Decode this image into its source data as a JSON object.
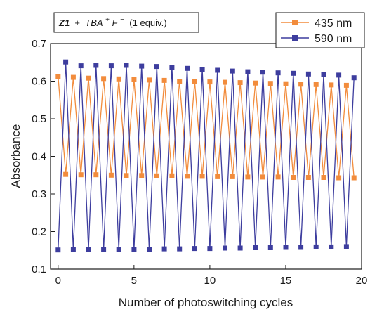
{
  "chart_data": {
    "type": "line",
    "title": "",
    "xlabel": "Number of photoswitching cycles",
    "ylabel": "Absorbance",
    "xlim": [
      -0.5,
      20
    ],
    "ylim": [
      0.1,
      0.7
    ],
    "xticks": [
      0,
      5,
      10,
      15,
      20
    ],
    "yticks": [
      0.1,
      0.2,
      0.3,
      0.4,
      0.5,
      0.6,
      0.7
    ],
    "grid": false,
    "legend_position": "top-right",
    "annotation": {
      "bold": "Z1",
      "text1": " + ",
      "italic1": "TBA",
      "sup1": "+",
      "italic2": "F",
      "sup2": "−",
      "text2": " (1 equiv.)"
    },
    "series": [
      {
        "name": "435 nm",
        "color": "#f28c3c",
        "marker": "square",
        "x": [
          0,
          0.5,
          1,
          1.5,
          2,
          2.5,
          3,
          3.5,
          4,
          4.5,
          5,
          5.5,
          6,
          6.5,
          7,
          7.5,
          8,
          8.5,
          9,
          9.5,
          10,
          10.5,
          11,
          11.5,
          12,
          12.5,
          13,
          13.5,
          14,
          14.5,
          15,
          15.5,
          16,
          16.5,
          17,
          17.5,
          18,
          18.5,
          19,
          19.5
        ],
        "values": [
          0.613,
          0.352,
          0.61,
          0.351,
          0.608,
          0.351,
          0.607,
          0.35,
          0.606,
          0.349,
          0.604,
          0.349,
          0.603,
          0.348,
          0.602,
          0.348,
          0.6,
          0.347,
          0.599,
          0.347,
          0.598,
          0.346,
          0.597,
          0.346,
          0.596,
          0.345,
          0.595,
          0.345,
          0.594,
          0.345,
          0.593,
          0.344,
          0.592,
          0.344,
          0.591,
          0.344,
          0.59,
          0.343,
          0.589,
          0.343
        ]
      },
      {
        "name": "590 nm",
        "color": "#3d3d9e",
        "marker": "square",
        "x": [
          0,
          0.5,
          1,
          1.5,
          2,
          2.5,
          3,
          3.5,
          4,
          4.5,
          5,
          5.5,
          6,
          6.5,
          7,
          7.5,
          8,
          8.5,
          9,
          9.5,
          10,
          10.5,
          11,
          11.5,
          12,
          12.5,
          13,
          13.5,
          14,
          14.5,
          15,
          15.5,
          16,
          16.5,
          17,
          17.5,
          18,
          18.5,
          19,
          19.5
        ],
        "values": [
          0.151,
          0.651,
          0.152,
          0.641,
          0.152,
          0.642,
          0.152,
          0.641,
          0.153,
          0.642,
          0.153,
          0.64,
          0.153,
          0.639,
          0.154,
          0.637,
          0.154,
          0.634,
          0.155,
          0.631,
          0.155,
          0.629,
          0.156,
          0.627,
          0.156,
          0.625,
          0.157,
          0.624,
          0.157,
          0.622,
          0.158,
          0.621,
          0.158,
          0.619,
          0.159,
          0.617,
          0.159,
          0.616,
          0.16,
          0.609
        ]
      }
    ]
  }
}
